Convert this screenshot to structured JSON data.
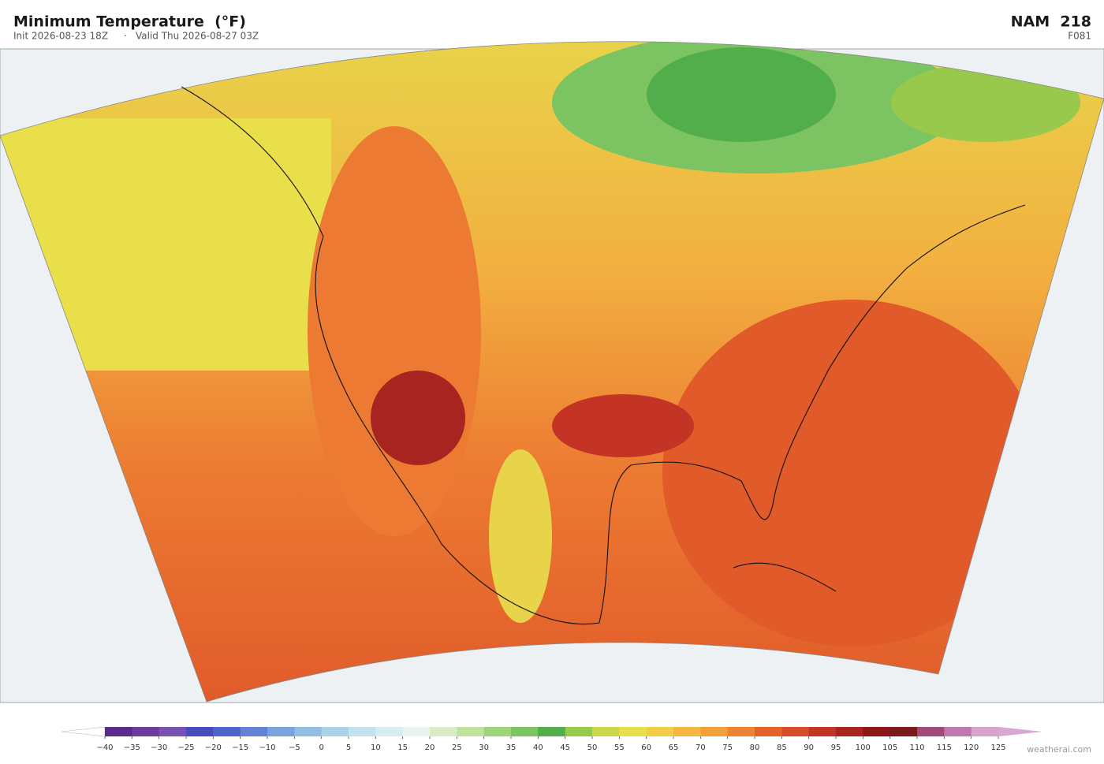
{
  "header": {
    "title": "Minimum Temperature  (°F)",
    "init": "Init 2026-08-23 18Z",
    "separator": "·",
    "valid": "Valid Thu 2026-08-27 03Z",
    "model": "NAM  218",
    "forecast_hour": "F081"
  },
  "colorbar": {
    "ticks": [
      {
        "value": -40,
        "label": "−40"
      },
      {
        "value": -35,
        "label": "−35"
      },
      {
        "value": -30,
        "label": "−30"
      },
      {
        "value": -25,
        "label": "−25"
      },
      {
        "value": -20,
        "label": "−20"
      },
      {
        "value": -15,
        "label": "−15"
      },
      {
        "value": -10,
        "label": "−10"
      },
      {
        "value": -5,
        "label": "−5"
      },
      0,
      5,
      10,
      15,
      20,
      25,
      30,
      35,
      40,
      45,
      50,
      55,
      60,
      65,
      70,
      75,
      80,
      85,
      90,
      95,
      100,
      105,
      110,
      115,
      120,
      125
    ],
    "colors": [
      "#5a2a8a",
      "#6b3c9c",
      "#7652b2",
      "#4a4cbd",
      "#5064cc",
      "#6282d4",
      "#7aa2dc",
      "#92bee2",
      "#abd2e8",
      "#c4e2ee",
      "#d8edf0",
      "#e8f4ec",
      "#d8edc6",
      "#bfe39e",
      "#a0d47c",
      "#7cc462",
      "#52ae4a",
      "#98c84c",
      "#c8d84a",
      "#e8e04a",
      "#f2cd48",
      "#f4b840",
      "#f09f3a",
      "#ec8434",
      "#e4632c",
      "#d84c28",
      "#c43424",
      "#a82420",
      "#8e1818",
      "#7a1a1e",
      "#a04a78",
      "#c078ac",
      "#d8a4cc"
    ],
    "under_color": "#ffffff",
    "over_color": "#d8a8d2"
  },
  "credit": "weatherai.com"
}
